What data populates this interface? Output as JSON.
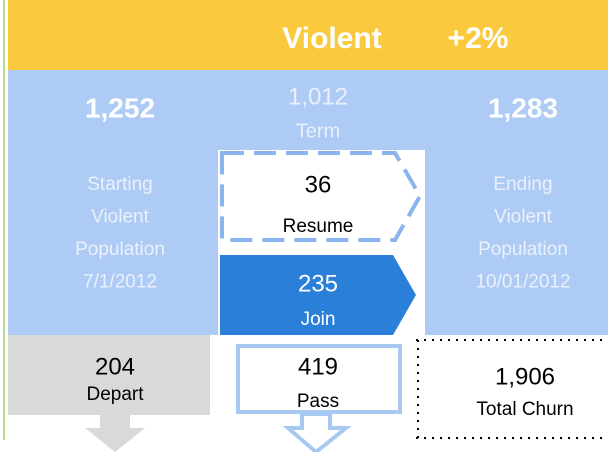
{
  "header": {
    "title": "Violent",
    "change": "+2%"
  },
  "start": {
    "value": "1,252",
    "lines": [
      "Starting",
      "Violent",
      "Population",
      "7/1/2012"
    ]
  },
  "term": {
    "value": "1,012",
    "label": "Term"
  },
  "end": {
    "value": "1,283",
    "lines": [
      "Ending",
      "Violent",
      "Population",
      "10/01/2012"
    ]
  },
  "resume": {
    "value": "36",
    "label": "Resume"
  },
  "join": {
    "value": "235",
    "label": "Join"
  },
  "depart": {
    "value": "204",
    "label": "Depart"
  },
  "pass": {
    "value": "419",
    "label": "Pass"
  },
  "churn": {
    "value": "1,906",
    "label": "Total Churn"
  }
}
